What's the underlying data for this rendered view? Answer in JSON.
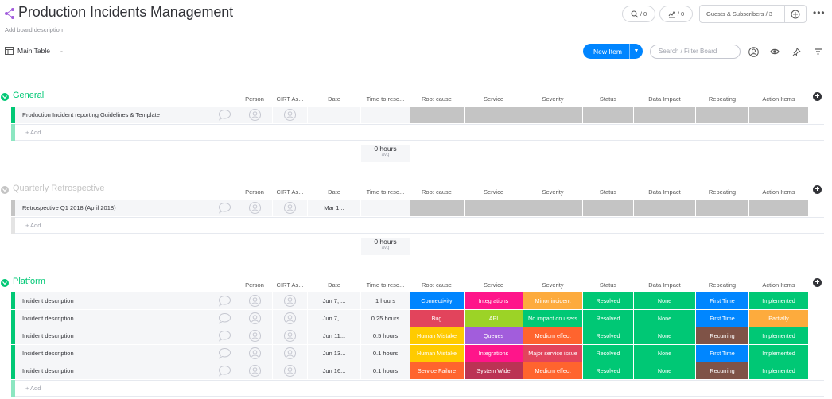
{
  "header": {
    "title": "Production Incidents Management",
    "description": "Add board description",
    "updates_count": "/ 0",
    "activity_count": "/ 0",
    "guests_label": "Guests & Subscribers / 3"
  },
  "toolbar": {
    "view_label": "Main Table",
    "new_item_label": "New Item",
    "search_placeholder": "Search / Filter Board"
  },
  "columns": [
    "Person",
    "CIRT As...",
    "Date",
    "Time to reso...",
    "Root cause",
    "Service",
    "Severity",
    "Status",
    "Data Impact",
    "Repeating",
    "Action Items"
  ],
  "colors": {
    "general": "#00c875",
    "retro": "#c4c4c4",
    "platform": "#00c875",
    "blue": "#0085ff"
  },
  "groups": [
    {
      "title": "General",
      "color": "#00c875",
      "title_color": "#00c875",
      "add_label": "+ Add",
      "summary": {
        "value": "0 hours",
        "label": "avg"
      },
      "rows": [
        {
          "name": "Production Incident reporting Guidelines & Template",
          "date": "",
          "time": "",
          "cells": [
            {
              "label": "",
              "color": "#c4c4c4"
            },
            {
              "label": "",
              "color": "#c4c4c4"
            },
            {
              "label": "",
              "color": "#c4c4c4"
            },
            {
              "label": "",
              "color": "#c4c4c4"
            },
            {
              "label": "",
              "color": "#c4c4c4"
            },
            {
              "label": "",
              "color": "#c4c4c4"
            },
            {
              "label": "",
              "color": "#c4c4c4"
            }
          ]
        }
      ]
    },
    {
      "title": "Quarterly Retrospective",
      "color": "#c4c4c4",
      "title_color": "#c4c4c4",
      "add_label": "+ Add",
      "summary": {
        "value": "0 hours",
        "label": "avg"
      },
      "rows": [
        {
          "name": "Retrospective Q1 2018 (April 2018)",
          "date": "Mar 1...",
          "time": "",
          "cells": [
            {
              "label": "",
              "color": "#c4c4c4"
            },
            {
              "label": "",
              "color": "#c4c4c4"
            },
            {
              "label": "",
              "color": "#c4c4c4"
            },
            {
              "label": "",
              "color": "#c4c4c4"
            },
            {
              "label": "",
              "color": "#c4c4c4"
            },
            {
              "label": "",
              "color": "#c4c4c4"
            },
            {
              "label": "",
              "color": "#c4c4c4"
            }
          ]
        }
      ]
    },
    {
      "title": "Platform",
      "color": "#00c875",
      "title_color": "#00c875",
      "add_label": "+ Add",
      "rows": [
        {
          "name": "Incident description",
          "date": "Jun 7, ...",
          "time": "1 hours",
          "cells": [
            {
              "label": "Connectivity",
              "color": "#0085ff"
            },
            {
              "label": "Integrations",
              "color": "#ff158a"
            },
            {
              "label": "Minor incident",
              "color": "#fdab3d"
            },
            {
              "label": "Resolved",
              "color": "#00c875"
            },
            {
              "label": "None",
              "color": "#00c875"
            },
            {
              "label": "First Time",
              "color": "#0086ff"
            },
            {
              "label": "Implemented",
              "color": "#00c875"
            }
          ]
        },
        {
          "name": "Incident description",
          "date": "Jun 7, ...",
          "time": "0.25 hours",
          "cells": [
            {
              "label": "Bug",
              "color": "#e2445c"
            },
            {
              "label": "API",
              "color": "#9cd326"
            },
            {
              "label": "No impact on users",
              "color": "#00c875"
            },
            {
              "label": "Resolved",
              "color": "#00c875"
            },
            {
              "label": "None",
              "color": "#00c875"
            },
            {
              "label": "First Time",
              "color": "#0086ff"
            },
            {
              "label": "Partially",
              "color": "#fdab3d"
            }
          ]
        },
        {
          "name": "Incident description",
          "date": "Jun 11...",
          "time": "0.5 hours",
          "cells": [
            {
              "label": "Human Mistake",
              "color": "#ffcb00"
            },
            {
              "label": "Queues",
              "color": "#a25ddc"
            },
            {
              "label": "Medium effect",
              "color": "#ff642e"
            },
            {
              "label": "Resolved",
              "color": "#00c875"
            },
            {
              "label": "None",
              "color": "#00c875"
            },
            {
              "label": "Recurring",
              "color": "#7f5347"
            },
            {
              "label": "Implemented",
              "color": "#00c875"
            }
          ]
        },
        {
          "name": "Incident description",
          "date": "Jun 13...",
          "time": "0.1 hours",
          "cells": [
            {
              "label": "Human Mistake",
              "color": "#ffcb00"
            },
            {
              "label": "Integrations",
              "color": "#ff158a"
            },
            {
              "label": "Major service issue",
              "color": "#e2445c"
            },
            {
              "label": "Resolved",
              "color": "#00c875"
            },
            {
              "label": "None",
              "color": "#00c875"
            },
            {
              "label": "First Time",
              "color": "#0086ff"
            },
            {
              "label": "Implemented",
              "color": "#00c875"
            }
          ]
        },
        {
          "name": "Incident description",
          "date": "Jun 16...",
          "time": "0.1 hours",
          "cells": [
            {
              "label": "Service Failure",
              "color": "#ff642e"
            },
            {
              "label": "System Wide",
              "color": "#bb3354"
            },
            {
              "label": "Medium effect",
              "color": "#ff642e"
            },
            {
              "label": "Resolved",
              "color": "#00c875"
            },
            {
              "label": "None",
              "color": "#00c875"
            },
            {
              "label": "Recurring",
              "color": "#7f5347"
            },
            {
              "label": "Implemented",
              "color": "#00c875"
            }
          ]
        }
      ]
    }
  ]
}
